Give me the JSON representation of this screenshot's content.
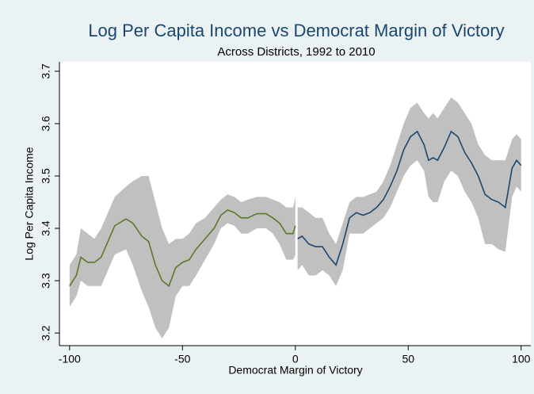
{
  "chart_data": {
    "type": "band-line",
    "title": "Log Per Capita Income vs Democrat Margin of Victory",
    "subtitle": "Across Districts, 1992 to 2010",
    "x_label": "Democrat Margin of Victory",
    "y_label": "Log Per Capita Income",
    "xlim": [
      -104.5,
      104.3
    ],
    "ylim": [
      3.176,
      3.718
    ],
    "xticks": [
      -100,
      -50,
      0,
      50,
      100
    ],
    "yticks": [
      3.2,
      3.3,
      3.4,
      3.5,
      3.6,
      3.7
    ],
    "grid": false,
    "band_color": "#c0c0c0",
    "series": [
      {
        "color": "#5a7a2a",
        "x": [
          -100,
          -97,
          -95,
          -92,
          -89,
          -86,
          -83,
          -80,
          -75,
          -72,
          -68,
          -65,
          -62,
          -59,
          -56,
          -53,
          -50,
          -47,
          -44,
          -40,
          -36,
          -33,
          -30,
          -27,
          -24,
          -21,
          -17,
          -13,
          -10,
          -7,
          -4,
          -1,
          0
        ],
        "values": [
          3.29,
          3.31,
          3.345,
          3.335,
          3.335,
          3.345,
          3.375,
          3.405,
          3.418,
          3.41,
          3.385,
          3.375,
          3.33,
          3.3,
          3.29,
          3.325,
          3.335,
          3.34,
          3.36,
          3.38,
          3.4,
          3.425,
          3.435,
          3.43,
          3.42,
          3.42,
          3.428,
          3.428,
          3.42,
          3.41,
          3.39,
          3.39,
          3.405
        ],
        "lower": [
          3.25,
          3.27,
          3.3,
          3.29,
          3.29,
          3.29,
          3.32,
          3.35,
          3.36,
          3.33,
          3.28,
          3.25,
          3.21,
          3.19,
          3.21,
          3.27,
          3.29,
          3.29,
          3.31,
          3.34,
          3.37,
          3.4,
          3.41,
          3.405,
          3.39,
          3.39,
          3.4,
          3.4,
          3.39,
          3.37,
          3.34,
          3.34,
          3.35
        ],
        "upper": [
          3.33,
          3.35,
          3.4,
          3.39,
          3.38,
          3.4,
          3.43,
          3.46,
          3.48,
          3.49,
          3.5,
          3.5,
          3.45,
          3.4,
          3.37,
          3.38,
          3.38,
          3.39,
          3.41,
          3.42,
          3.44,
          3.455,
          3.465,
          3.46,
          3.45,
          3.455,
          3.46,
          3.46,
          3.455,
          3.45,
          3.44,
          3.44,
          3.46
        ]
      },
      {
        "color": "#1a476f",
        "x": [
          1,
          3,
          6,
          9,
          12,
          15,
          18,
          21,
          24,
          27,
          30,
          33,
          36,
          39,
          42,
          45,
          48,
          51,
          54,
          57,
          59,
          61,
          63,
          66,
          69,
          72,
          75,
          78,
          81,
          84,
          87,
          90,
          93,
          96,
          98,
          100
        ],
        "values": [
          3.38,
          3.385,
          3.37,
          3.365,
          3.365,
          3.345,
          3.33,
          3.37,
          3.42,
          3.43,
          3.425,
          3.43,
          3.44,
          3.455,
          3.48,
          3.51,
          3.55,
          3.575,
          3.585,
          3.56,
          3.53,
          3.535,
          3.53,
          3.555,
          3.585,
          3.575,
          3.545,
          3.525,
          3.5,
          3.465,
          3.455,
          3.45,
          3.44,
          3.515,
          3.53,
          3.52
        ],
        "lower": [
          3.32,
          3.33,
          3.31,
          3.31,
          3.32,
          3.31,
          3.29,
          3.32,
          3.39,
          3.39,
          3.39,
          3.4,
          3.41,
          3.42,
          3.44,
          3.47,
          3.5,
          3.52,
          3.53,
          3.51,
          3.46,
          3.45,
          3.45,
          3.49,
          3.51,
          3.5,
          3.47,
          3.45,
          3.42,
          3.37,
          3.37,
          3.36,
          3.355,
          3.46,
          3.48,
          3.47
        ],
        "upper": [
          3.44,
          3.44,
          3.43,
          3.42,
          3.42,
          3.39,
          3.37,
          3.41,
          3.45,
          3.46,
          3.46,
          3.465,
          3.47,
          3.49,
          3.52,
          3.56,
          3.6,
          3.63,
          3.64,
          3.62,
          3.61,
          3.62,
          3.61,
          3.63,
          3.65,
          3.64,
          3.62,
          3.6,
          3.56,
          3.54,
          3.53,
          3.53,
          3.53,
          3.57,
          3.58,
          3.57
        ]
      }
    ]
  }
}
